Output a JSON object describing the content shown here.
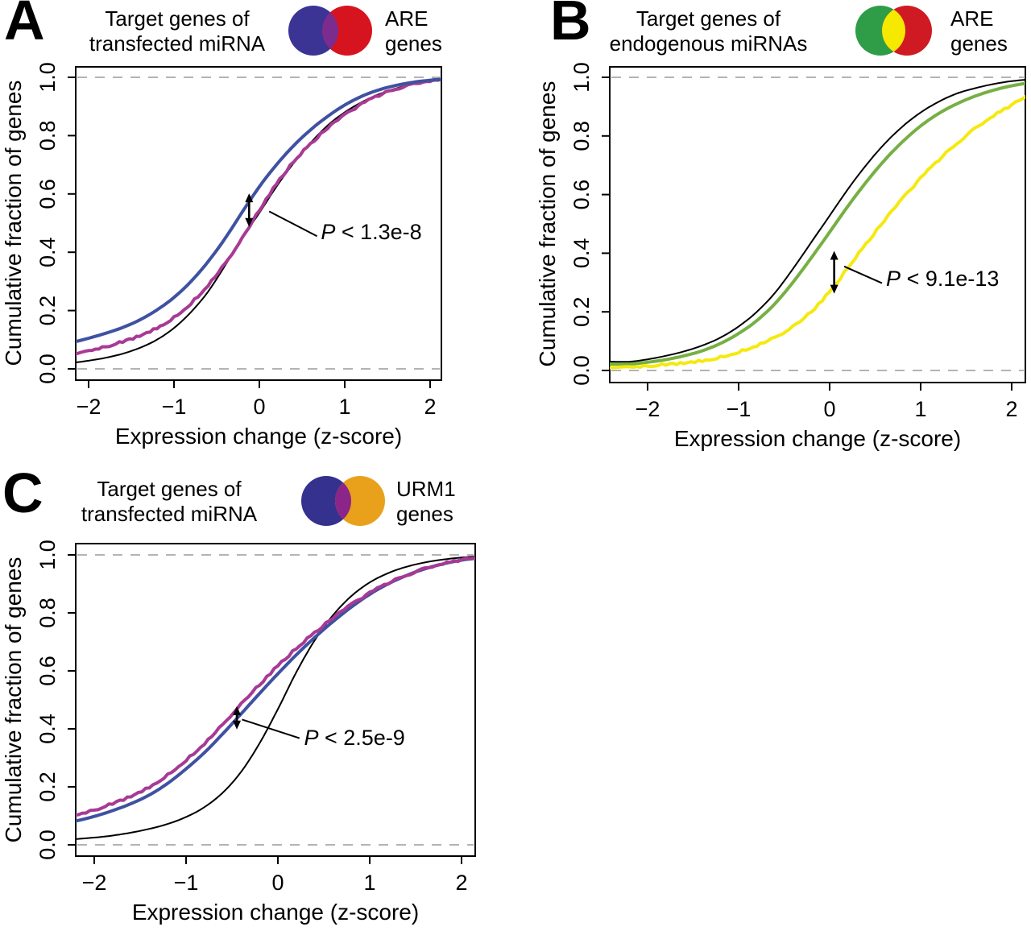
{
  "panels": [
    {
      "letter": "A",
      "title_line1": "Target genes of",
      "title_line2": "transfected miRNA",
      "venn": {
        "left_color": "#3b3494",
        "right_color": "#d6141f",
        "overlap_color": "#7c2b8e",
        "label_line1": "ARE",
        "label_line2": "genes"
      }
    },
    {
      "letter": "B",
      "title_line1": "Target genes of",
      "title_line2": "endogenous miRNAs",
      "venn": {
        "left_color": "#2f9c48",
        "right_color": "#cf1a24",
        "overlap_color": "#f6e900",
        "label_line1": "ARE",
        "label_line2": "genes"
      }
    },
    {
      "letter": "C",
      "title_line1": "Target genes of",
      "title_line2": "transfected miRNA",
      "venn": {
        "left_color": "#35318e",
        "right_color": "#e9a11b",
        "overlap_color": "#8b2589",
        "label_line1": "URM1",
        "label_line2": "genes"
      }
    }
  ],
  "chart_data": [
    {
      "type": "line",
      "panel": "A",
      "title": "Target genes of transfected miRNA vs ARE genes",
      "xlabel": "Expression change (z-score)",
      "ylabel": "Cumulative fraction of genes",
      "xlim": [
        -2.2,
        2.2
      ],
      "ylim": [
        0,
        1
      ],
      "grid": "dashed horizontal lines at y=0 and y=1",
      "legend": "none",
      "x_ticks": [
        -2,
        -1,
        0,
        1,
        2
      ],
      "x_tick_labels": [
        "−2",
        "−1",
        "0",
        "1",
        "2"
      ],
      "y_ticks": [
        0,
        0.2,
        0.4,
        0.6,
        0.8,
        1
      ],
      "y_tick_labels": [
        "0.0",
        "0.2",
        "0.4",
        "0.6",
        "0.8",
        "1.0"
      ],
      "dashed_lines_y": [
        0,
        1
      ],
      "x": [
        -2.2,
        -2.0,
        -1.8,
        -1.6,
        -1.4,
        -1.2,
        -1.0,
        -0.8,
        -0.6,
        -0.4,
        -0.2,
        0,
        0.2,
        0.4,
        0.6,
        0.8,
        1.0,
        1.2,
        1.4,
        1.6,
        1.8,
        2.0,
        2.2
      ],
      "series": [
        {
          "name": "all-genes-black",
          "color": "#000000",
          "width": 2,
          "wiggly": false,
          "values": [
            0.02,
            0.028,
            0.038,
            0.052,
            0.072,
            0.1,
            0.14,
            0.195,
            0.265,
            0.355,
            0.45,
            0.535,
            0.625,
            0.705,
            0.775,
            0.835,
            0.88,
            0.915,
            0.942,
            0.962,
            0.976,
            0.986,
            0.993
          ]
        },
        {
          "name": "overlap-purple",
          "color": "#a83a94",
          "width": 4,
          "wiggly": true,
          "values": [
            0.05,
            0.062,
            0.076,
            0.093,
            0.114,
            0.141,
            0.177,
            0.226,
            0.288,
            0.362,
            0.448,
            0.545,
            0.633,
            0.71,
            0.772,
            0.825,
            0.87,
            0.908,
            0.938,
            0.96,
            0.976,
            0.987,
            0.993
          ]
        },
        {
          "name": "target-genes-blue",
          "color": "#3f51a1",
          "width": 4,
          "wiggly": false,
          "values": [
            0.09,
            0.105,
            0.122,
            0.142,
            0.168,
            0.202,
            0.245,
            0.3,
            0.368,
            0.448,
            0.538,
            0.625,
            0.7,
            0.765,
            0.82,
            0.866,
            0.905,
            0.935,
            0.957,
            0.972,
            0.983,
            0.99,
            0.995
          ]
        }
      ],
      "annotation": {
        "label_italic": "P",
        "label_rest": " < 1.3e-8",
        "arrow_x": -0.12,
        "arrow_y1": 0.487,
        "arrow_y2": 0.602,
        "leader_x1": 0.115,
        "leader_y1": 0.54,
        "leader_x2": 0.675,
        "leader_y2": 0.455,
        "text_x": 0.72,
        "text_y": 0.445
      }
    },
    {
      "type": "line",
      "panel": "B",
      "title": "Target genes of endogenous miRNAs vs ARE genes",
      "xlabel": "Expression change (z-score)",
      "ylabel": "Cumulative fraction of genes",
      "xlim": [
        -2.2,
        2.2
      ],
      "ylim": [
        0,
        1
      ],
      "grid": "dashed horizontal lines at y=0 and y=1",
      "legend": "none",
      "x_ticks": [
        -2,
        -1,
        0,
        1,
        2
      ],
      "x_tick_labels": [
        "−2",
        "−1",
        "0",
        "1",
        "2"
      ],
      "y_ticks": [
        0,
        0.2,
        0.4,
        0.6,
        0.8,
        1
      ],
      "y_tick_labels": [
        "0.0",
        "0.2",
        "0.4",
        "0.6",
        "0.8",
        "1.0"
      ],
      "dashed_lines_y": [
        0,
        1
      ],
      "x": [
        -2.2,
        -2.0,
        -1.8,
        -1.6,
        -1.4,
        -1.2,
        -1.0,
        -0.8,
        -0.6,
        -0.4,
        -0.2,
        0,
        0.2,
        0.4,
        0.6,
        0.8,
        1.0,
        1.2,
        1.4,
        1.6,
        1.8,
        2.0,
        2.2
      ],
      "series": [
        {
          "name": "all-genes-black",
          "color": "#000000",
          "width": 2,
          "wiggly": false,
          "values": [
            0.03,
            0.038,
            0.05,
            0.065,
            0.085,
            0.112,
            0.15,
            0.2,
            0.265,
            0.348,
            0.438,
            0.528,
            0.618,
            0.7,
            0.772,
            0.832,
            0.88,
            0.917,
            0.945,
            0.963,
            0.977,
            0.987,
            0.993
          ]
        },
        {
          "name": "endogenous-targets-green",
          "color": "#76b043",
          "width": 4,
          "wiggly": false,
          "values": [
            0.022,
            0.028,
            0.037,
            0.05,
            0.067,
            0.092,
            0.126,
            0.17,
            0.228,
            0.302,
            0.385,
            0.472,
            0.56,
            0.642,
            0.716,
            0.78,
            0.834,
            0.877,
            0.91,
            0.936,
            0.956,
            0.971,
            0.982
          ]
        },
        {
          "name": "overlap-yellow",
          "color": "#f5e90f",
          "width": 4,
          "wiggly": true,
          "values": [
            0.012,
            0.015,
            0.02,
            0.026,
            0.034,
            0.046,
            0.064,
            0.086,
            0.113,
            0.15,
            0.202,
            0.268,
            0.35,
            0.432,
            0.51,
            0.585,
            0.655,
            0.718,
            0.775,
            0.825,
            0.868,
            0.905,
            0.94
          ]
        }
      ],
      "annotation": {
        "label_italic": "P",
        "label_rest": " < 9.1e-13",
        "arrow_x": 0.05,
        "arrow_y1": 0.262,
        "arrow_y2": 0.408,
        "leader_x1": 0.16,
        "leader_y1": 0.355,
        "leader_x2": 0.575,
        "leader_y2": 0.298,
        "text_x": 0.62,
        "text_y": 0.288
      }
    },
    {
      "type": "line",
      "panel": "C",
      "title": "Target genes of transfected miRNA vs URM1 genes",
      "xlabel": "Expression change (z-score)",
      "ylabel": "Cumulative fraction of genes",
      "xlim": [
        -2.2,
        2.2
      ],
      "ylim": [
        0,
        1
      ],
      "grid": "dashed horizontal lines at y=0 and y=1",
      "legend": "none",
      "x_ticks": [
        -2,
        -1,
        0,
        1,
        2
      ],
      "x_tick_labels": [
        "−2",
        "−1",
        "0",
        "1",
        "2"
      ],
      "y_ticks": [
        0,
        0.2,
        0.4,
        0.6,
        0.8,
        1
      ],
      "y_tick_labels": [
        "0.0",
        "0.2",
        "0.4",
        "0.6",
        "0.8",
        "1.0"
      ],
      "dashed_lines_y": [
        0,
        1
      ],
      "x": [
        -2.2,
        -2.0,
        -1.8,
        -1.6,
        -1.4,
        -1.2,
        -1.0,
        -0.8,
        -0.6,
        -0.4,
        -0.2,
        0,
        0.2,
        0.4,
        0.6,
        0.8,
        1.0,
        1.2,
        1.4,
        1.6,
        1.8,
        2.0,
        2.2
      ],
      "series": [
        {
          "name": "all-genes-black",
          "color": "#000000",
          "width": 2,
          "wiggly": false,
          "values": [
            0.02,
            0.025,
            0.032,
            0.042,
            0.055,
            0.072,
            0.096,
            0.13,
            0.18,
            0.252,
            0.35,
            0.468,
            0.595,
            0.705,
            0.792,
            0.858,
            0.905,
            0.937,
            0.959,
            0.974,
            0.984,
            0.991,
            0.995
          ]
        },
        {
          "name": "target-genes-blue",
          "color": "#3f51a1",
          "width": 4,
          "wiggly": false,
          "values": [
            0.082,
            0.098,
            0.118,
            0.142,
            0.172,
            0.212,
            0.262,
            0.318,
            0.383,
            0.452,
            0.522,
            0.59,
            0.655,
            0.715,
            0.77,
            0.82,
            0.864,
            0.9,
            0.929,
            0.952,
            0.969,
            0.982,
            0.99
          ]
        },
        {
          "name": "overlap-purple",
          "color": "#a83a94",
          "width": 4,
          "wiggly": true,
          "values": [
            0.103,
            0.12,
            0.142,
            0.168,
            0.2,
            0.242,
            0.293,
            0.35,
            0.415,
            0.485,
            0.553,
            0.617,
            0.677,
            0.732,
            0.782,
            0.828,
            0.868,
            0.902,
            0.93,
            0.952,
            0.969,
            0.982,
            0.99
          ]
        }
      ],
      "annotation": {
        "label_italic": "P",
        "label_rest": " < 2.5e-9",
        "arrow_x": -0.447,
        "arrow_y1": 0.398,
        "arrow_y2": 0.478,
        "leader_x1": -0.39,
        "leader_y1": 0.432,
        "leader_x2": 0.235,
        "leader_y2": 0.368,
        "text_x": 0.285,
        "text_y": 0.345
      }
    }
  ]
}
